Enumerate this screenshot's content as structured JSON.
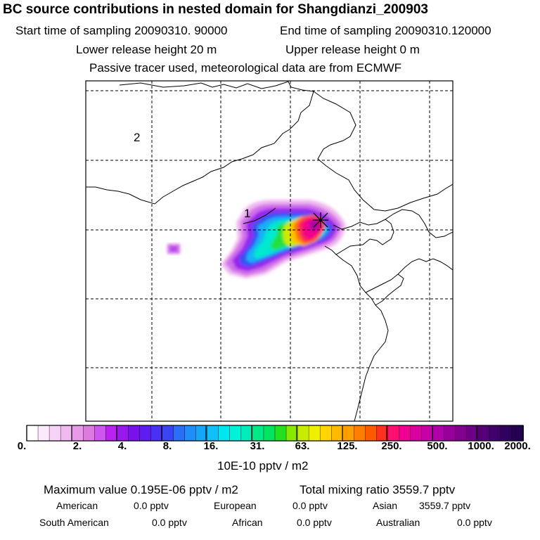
{
  "header": {
    "title": "BC  source contributions in nested domain for Shangdianzi_200903",
    "start_label": "Start time of sampling 20090310. 90000",
    "end_label": "End time of sampling 20090310.120000",
    "lower_label": "Lower release height   20 m",
    "upper_label": "Upper release height    0 m",
    "info_line": "Passive tracer used, meteorological data are from ECMWF"
  },
  "map": {
    "region_labels": [
      "2",
      "1"
    ],
    "receptor_marker": "x-marker-icon"
  },
  "colorbar": {
    "tick_labels": [
      "0.",
      "2.",
      "4.",
      "8.",
      "16.",
      "31.",
      "63.",
      "125.",
      "250.",
      "500.",
      "1000.",
      "2000."
    ],
    "unit_label": "10E-10 pptv / m2",
    "colors": [
      "#ffffff",
      "#fbe8fb",
      "#f6d2f6",
      "#f0baf0",
      "#e79ae7",
      "#dd7add",
      "#cf55ef",
      "#bb22f2",
      "#9a18ee",
      "#7a10ea",
      "#5e1df0",
      "#4a30f2",
      "#3a44f5",
      "#2a6ef6",
      "#1d8ef7",
      "#16a6f8",
      "#10c0f8",
      "#00e6f0",
      "#00f2d8",
      "#00ecb8",
      "#00e888",
      "#00e460",
      "#22e020",
      "#88e800",
      "#c8ec00",
      "#eef000",
      "#ffd400",
      "#ffba00",
      "#ff9e00",
      "#ff7e00",
      "#ff5c00",
      "#ff3020",
      "#ff1070",
      "#f00090",
      "#da00a0",
      "#c800a8",
      "#b000a8",
      "#98009c",
      "#820090",
      "#6c0086",
      "#560078",
      "#40006a",
      "#300060",
      "#240050"
    ]
  },
  "footer": {
    "max_value": "Maximum value  0.195E-06 pptv / m2",
    "total_mixing": "Total mixing ratio     3559.7 pptv",
    "american": "American",
    "american_val": "0.0 pptv",
    "european": "European",
    "european_val": "0.0 pptv",
    "asian": "Asian",
    "asian_val": "3559.7 pptv",
    "south_american": "South American",
    "south_american_val": "0.0 pptv",
    "african": "African",
    "african_val": "0.0 pptv",
    "australian": "Australian",
    "australian_val": "0.0 pptv"
  }
}
